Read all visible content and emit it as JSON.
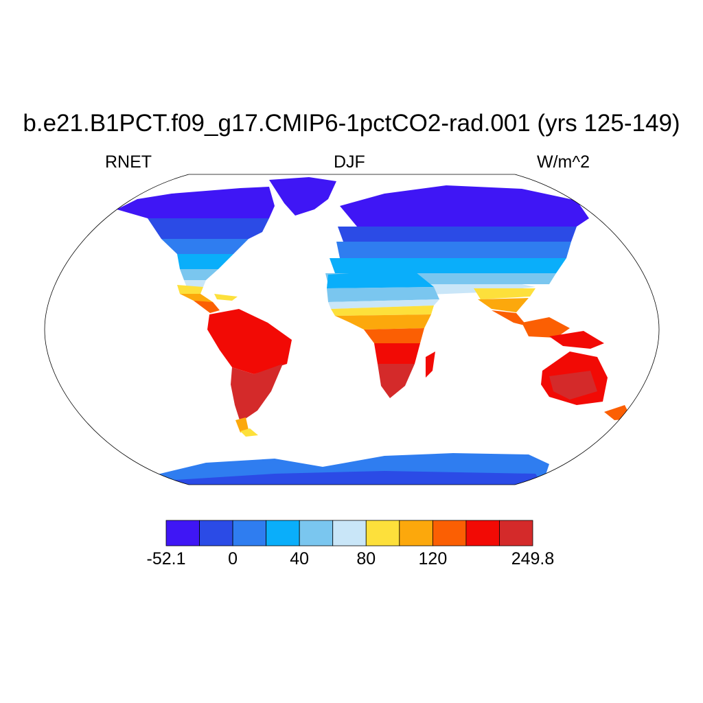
{
  "title": "b.e21.B1PCT.f09_g17.CMIP6-1pctCO2-rad.001 (yrs 125-149)",
  "left_string": "RNET",
  "center_string": "DJF",
  "right_string": "W/m^2",
  "colorbar": {
    "colors": [
      "#3f16f5",
      "#2b4be6",
      "#2f7df0",
      "#0aaefa",
      "#7ac6ef",
      "#c9e6f8",
      "#fde03b",
      "#fca80c",
      "#fb5f03",
      "#f20a05",
      "#d42a2a"
    ],
    "labels": [
      "-52.1",
      "0",
      "40",
      "80",
      "120",
      "249.8"
    ],
    "label_box_index": [
      0,
      2,
      4,
      6,
      8,
      11
    ]
  },
  "chart_data": {
    "type": "heatmap",
    "projection": "Robinson",
    "variable": "RNET",
    "season": "DJF",
    "units": "W/m^2",
    "range": [
      -52.1,
      249.8
    ],
    "regions": [
      {
        "name": "Arctic / northern high latitudes",
        "band": "-52.1 to 0"
      },
      {
        "name": "Northern mid latitudes",
        "band": "0 to 40"
      },
      {
        "name": "Sahara / subtropics",
        "band": "40 to 80"
      },
      {
        "name": "Tropical edges / Sahel",
        "band": "80 to 120"
      },
      {
        "name": "South America / southern Africa / Australia",
        "band": "120 to 249.8"
      },
      {
        "name": "Antarctica",
        "band": "0 to 40"
      }
    ]
  }
}
